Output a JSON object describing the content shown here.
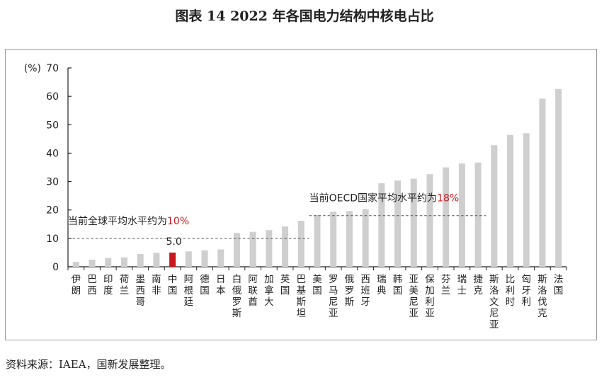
{
  "title": "图表 14  2022 年各国电力结构中核电占比",
  "source": "资料来源：IAEA，国新发展整理。",
  "colors": {
    "bar": "#cfcfcf",
    "highlight": "#c8191e",
    "axis": "#222222",
    "avg_line": "#555555"
  },
  "chart_data": {
    "type": "bar",
    "title": "",
    "ylabel": "(%)",
    "xlabel": "",
    "ylim": [
      0,
      70
    ],
    "yticks": [
      0,
      10,
      20,
      30,
      40,
      50,
      60,
      70
    ],
    "grid": false,
    "categories": [
      "伊朗",
      "巴西",
      "印度",
      "荷兰",
      "墨西哥",
      "南非",
      "中国",
      "阿根廷",
      "德国",
      "日本",
      "白俄罗斯",
      "阿联酋",
      "加拿大",
      "英国",
      "巴基斯坦",
      "美国",
      "罗马尼亚",
      "俄罗斯",
      "西班牙",
      "瑞典",
      "韩国",
      "亚美尼亚",
      "保加利亚",
      "芬兰",
      "瑞士",
      "捷克",
      "斯洛文尼亚",
      "比利时",
      "匈牙利",
      "斯洛伐克",
      "法国"
    ],
    "values": [
      1.7,
      2.5,
      3.1,
      3.3,
      4.5,
      4.9,
      5.0,
      5.4,
      5.8,
      6.1,
      11.9,
      12.3,
      12.9,
      14.2,
      16.2,
      18.2,
      19.4,
      19.6,
      20.3,
      29.4,
      30.4,
      31.0,
      32.6,
      35.0,
      36.4,
      36.7,
      42.8,
      46.4,
      47.0,
      59.2,
      62.6
    ],
    "highlight_category": "中国",
    "value_labels": [
      {
        "category": "中国",
        "text": "5.0"
      }
    ],
    "annotations": [
      {
        "prefix": "当前全球平均水平约为",
        "value_text": "10%",
        "value": 10,
        "from": "伊朗",
        "to": "巴基斯坦"
      },
      {
        "prefix": "当前OECD国家平均水平约为",
        "value_text": "18%",
        "value": 18,
        "from": "美国",
        "to": "捷克"
      }
    ]
  }
}
